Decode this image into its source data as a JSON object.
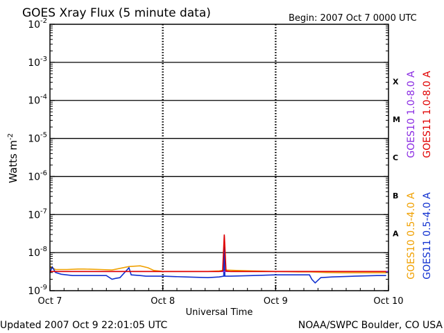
{
  "header": {
    "title": "GOES Xray Flux (5 minute data)",
    "begin": "Begin:  2007 Oct 7 0000 UTC"
  },
  "footer": {
    "updated": "Updated 2007 Oct  9 22:01:05 UTC",
    "source": "NOAA/SWPC Boulder, CO USA"
  },
  "colors": {
    "goes10_long": "#8a2be2",
    "goes11_long": "#e00000",
    "goes10_short": "#f0a000",
    "goes11_short": "#1030d0"
  },
  "chart_data": {
    "type": "line",
    "title": "GOES Xray Flux (5 minute data)",
    "xlabel": "Universal Time",
    "ylabel": "Watts m",
    "ylabel_sup": "-2",
    "yscale": "log",
    "ylim": [
      1e-09,
      0.01
    ],
    "y_ticks": [
      {
        "base": "10",
        "exp": "-2"
      },
      {
        "base": "10",
        "exp": "-3"
      },
      {
        "base": "10",
        "exp": "-4"
      },
      {
        "base": "10",
        "exp": "-5"
      },
      {
        "base": "10",
        "exp": "-6"
      },
      {
        "base": "10",
        "exp": "-7"
      },
      {
        "base": "10",
        "exp": "-8"
      },
      {
        "base": "10",
        "exp": "-9"
      }
    ],
    "x_ticks": [
      "Oct 7",
      "Oct 8",
      "Oct 9",
      "Oct 10"
    ],
    "xlim_days": [
      0,
      3
    ],
    "flare_classes": [
      "X",
      "M",
      "C",
      "B",
      "A"
    ],
    "legend": [
      "GOES10 1.0-8.0 A",
      "GOES11 1.0-8.0 A",
      "GOES10 0.5-4.0 A",
      "GOES11 0.5-4.0 A"
    ],
    "series": [
      {
        "name": "GOES10 1.0-8.0 A",
        "color": "#8a2be2",
        "x": [
          0.0,
          0.5,
          1.0,
          1.5,
          2.0,
          2.5,
          3.0
        ],
        "y": [
          3.2e-09,
          3.2e-09,
          3.2e-09,
          3.2e-09,
          3.2e-09,
          3.2e-09,
          3.2e-09
        ]
      },
      {
        "name": "GOES11 1.0-8.0 A",
        "color": "#e00000",
        "x": [
          0.0,
          0.3,
          0.6,
          0.9,
          1.2,
          1.5,
          1.53,
          1.545,
          1.56,
          1.6,
          1.9,
          2.2,
          2.5,
          2.8,
          2.98
        ],
        "y": [
          3.2e-09,
          3.2e-09,
          3.2e-09,
          3.2e-09,
          3.2e-09,
          3.2e-09,
          3.3e-09,
          3e-08,
          3.3e-09,
          3.2e-09,
          3.2e-09,
          3.2e-09,
          3.2e-09,
          3.2e-09,
          3.2e-09
        ]
      },
      {
        "name": "GOES10 0.5-4.0 A",
        "color": "#f0a000",
        "x": [
          0.0,
          0.02,
          0.05,
          0.15,
          0.25,
          0.3,
          0.45,
          0.55,
          0.7,
          0.8,
          0.87,
          0.92,
          1.0,
          1.2,
          1.4,
          1.5,
          1.55,
          1.65,
          1.8,
          2.0,
          2.2,
          2.3,
          2.45,
          2.6,
          2.8,
          2.98
        ],
        "y": [
          4.5e-09,
          4e-09,
          3.6e-09,
          3.6e-09,
          3.7e-09,
          3.7e-09,
          3.6e-09,
          3.5e-09,
          4.3e-09,
          4.5e-09,
          4e-09,
          3.4e-09,
          3.2e-09,
          3.2e-09,
          3.2e-09,
          3.3e-09,
          3.5e-09,
          3.4e-09,
          3.3e-09,
          3.2e-09,
          3.1e-09,
          3.1e-09,
          3e-09,
          2.95e-09,
          2.95e-09,
          2.95e-09
        ]
      },
      {
        "name": "GOES11 0.5-4.0 A",
        "color": "#1030d0",
        "x": [
          0.0,
          0.02,
          0.05,
          0.1,
          0.2,
          0.25,
          0.5,
          0.55,
          0.58,
          0.62,
          0.7,
          0.72,
          0.8,
          0.85,
          1.0,
          1.2,
          1.4,
          1.5,
          1.54,
          1.545,
          1.55,
          1.6,
          1.8,
          2.0,
          2.2,
          2.3,
          2.32,
          2.35,
          2.4,
          2.5,
          2.7,
          2.9,
          2.98
        ],
        "y": [
          3e-09,
          4.2e-09,
          3e-09,
          2.7e-09,
          2.5e-09,
          2.5e-09,
          2.5e-09,
          2e-09,
          2.1e-09,
          2.2e-09,
          4e-09,
          2.6e-09,
          2.5e-09,
          2.4e-09,
          2.4e-09,
          2.3e-09,
          2.2e-09,
          2.3e-09,
          2.4e-09,
          2.8e-08,
          2.4e-09,
          2.4e-09,
          2.5e-09,
          2.6e-09,
          2.6e-09,
          2.6e-09,
          2e-09,
          1.6e-09,
          2.2e-09,
          2.3e-09,
          2.4e-09,
          2.5e-09,
          2.5e-09
        ]
      }
    ]
  }
}
